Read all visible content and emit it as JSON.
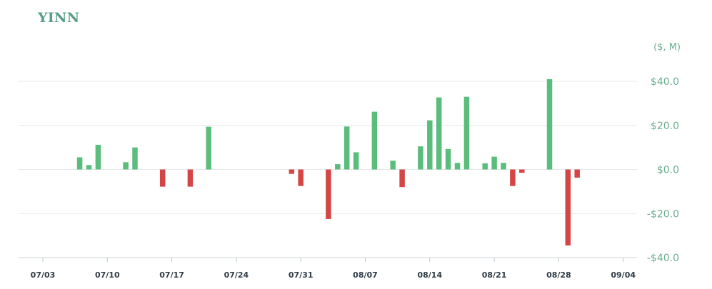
{
  "ticker": "YINN",
  "chart_data": {
    "type": "bar",
    "title": "YINN",
    "unit_label": "($, M)",
    "ylim": [
      -40,
      40
    ],
    "yticks": [
      40,
      20,
      0,
      -20,
      -40
    ],
    "ytick_labels": [
      "$40.0",
      "$20.0",
      "$0.0",
      "-$20.0",
      "-$40.0"
    ],
    "xtick_labels": [
      "07/03",
      "07/10",
      "07/17",
      "07/24",
      "07/31",
      "08/07",
      "08/14",
      "08/21",
      "08/28",
      "09/04"
    ],
    "grid": true,
    "colors": {
      "positive": "#5bbd7c",
      "negative": "#d64545"
    },
    "series": [
      {
        "x": [
          4,
          5,
          6,
          9,
          10,
          13,
          16,
          18,
          27,
          28,
          31,
          32,
          33,
          34,
          36,
          38,
          39,
          41,
          42,
          43,
          44,
          45,
          46,
          48,
          49,
          50,
          51,
          52,
          55,
          57,
          58,
          61
        ],
        "values": [
          5.5,
          2,
          11.2,
          3.3,
          10,
          -7.8,
          -7.8,
          19.4,
          -2,
          -7.5,
          -22.5,
          2.4,
          19.5,
          7.8,
          26.2,
          4,
          -8,
          10.5,
          22.3,
          32.7,
          9.3,
          3,
          33,
          2.8,
          5.8,
          3,
          -7.5,
          -1.5,
          41,
          -34.5,
          -3.7,
          0
        ]
      }
    ]
  }
}
